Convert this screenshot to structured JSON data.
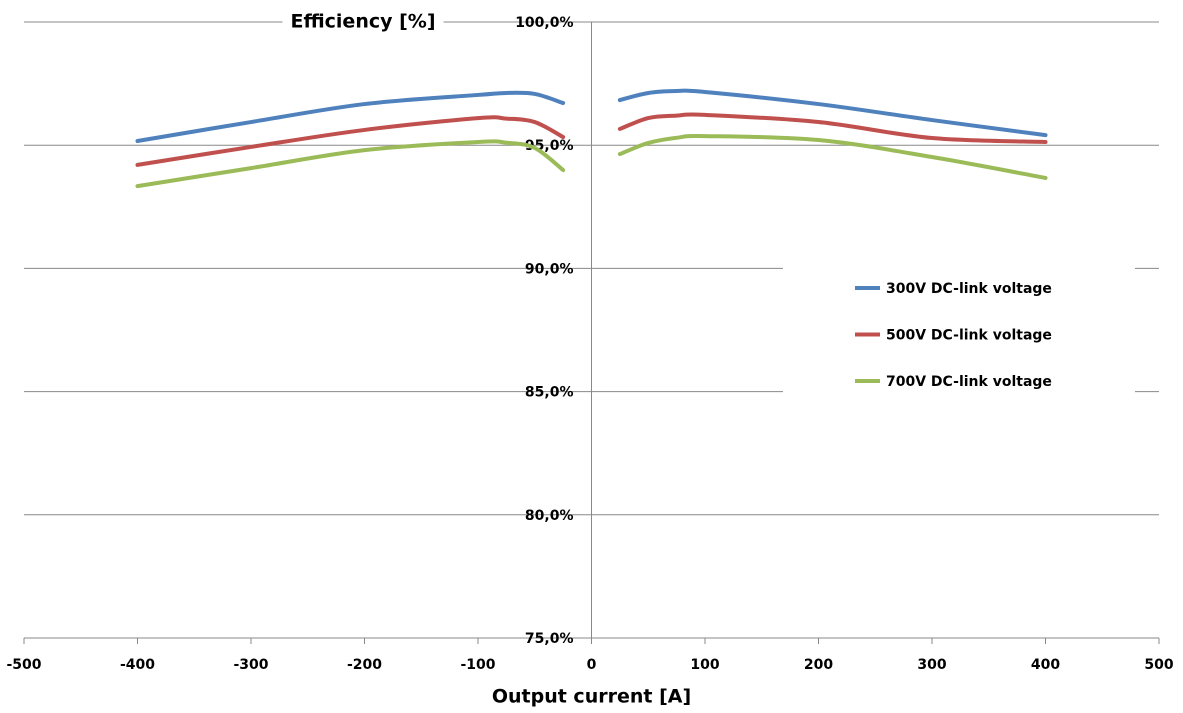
{
  "chart_data": {
    "type": "line",
    "title": "Efficiency [%]",
    "x_label": "Output current [A]",
    "x": [
      -400,
      -300,
      -200,
      -100,
      -75,
      -50,
      -25,
      0,
      25,
      50,
      75,
      100,
      200,
      300,
      400
    ],
    "series": [
      {
        "name": "300V DC-link voltage",
        "color": "#4f81bd",
        "values": [
          95.17,
          95.94,
          96.67,
          97.04,
          97.12,
          97.08,
          96.71,
          null,
          96.83,
          97.12,
          97.2,
          97.16,
          96.67,
          96.02,
          95.41
        ]
      },
      {
        "name": "500V DC-link voltage",
        "color": "#c0504d",
        "values": [
          94.2,
          94.93,
          95.62,
          96.1,
          96.08,
          95.94,
          95.33,
          null,
          95.66,
          96.1,
          96.2,
          96.23,
          95.94,
          95.29,
          95.13
        ]
      },
      {
        "name": "700V DC-link voltage",
        "color": "#9bbb59",
        "values": [
          93.34,
          94.07,
          94.8,
          95.13,
          95.1,
          94.89,
          93.99,
          null,
          94.64,
          95.09,
          95.3,
          95.37,
          95.21,
          94.52,
          93.67
        ]
      }
    ],
    "xlim": [
      -500,
      500
    ],
    "xticks": [
      -500,
      -400,
      -300,
      -200,
      -100,
      0,
      100,
      200,
      300,
      400,
      500
    ],
    "ylim": [
      75,
      100
    ],
    "yticks": [
      {
        "value": 75,
        "label": "75,0%"
      },
      {
        "value": 80,
        "label": "80,0%"
      },
      {
        "value": 85,
        "label": "85,0%"
      },
      {
        "value": 90,
        "label": "90,0%"
      },
      {
        "value": 95,
        "label": "95,0%"
      },
      {
        "value": 100,
        "label": "100,0%"
      }
    ],
    "grid": true,
    "legend": "right"
  }
}
